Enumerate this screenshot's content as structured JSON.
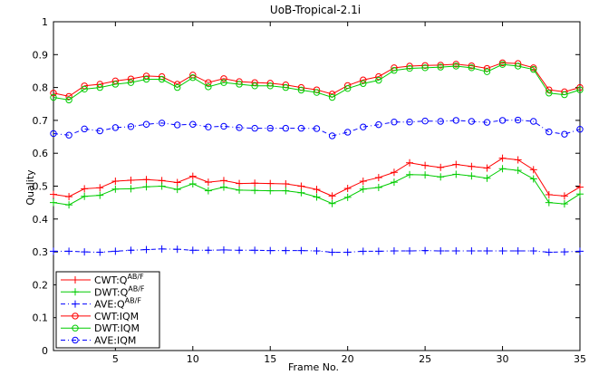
{
  "chart_data": {
    "type": "line",
    "title": "UoB-Tropical-2.1i",
    "xlabel": "Frame No.",
    "ylabel": "Quality",
    "xlim": [
      1,
      35
    ],
    "ylim": [
      0,
      1
    ],
    "xticks": [
      "5",
      "10",
      "15",
      "20",
      "25",
      "30",
      "35"
    ],
    "xtick_values": [
      5,
      10,
      15,
      20,
      25,
      30,
      35
    ],
    "yticks": [
      "0",
      "0.1",
      "0.2",
      "0.3",
      "0.4",
      "0.5",
      "0.6",
      "0.7",
      "0.8",
      "0.9",
      "1"
    ],
    "ytick_values": [
      0,
      0.1,
      0.2,
      0.3,
      0.4,
      0.5,
      0.6,
      0.7,
      0.8,
      0.9,
      1
    ],
    "grid": false,
    "legend_position": "bottom-left",
    "x": [
      1,
      2,
      3,
      4,
      5,
      6,
      7,
      8,
      9,
      10,
      11,
      12,
      13,
      14,
      15,
      16,
      17,
      18,
      19,
      20,
      21,
      22,
      23,
      24,
      25,
      26,
      27,
      28,
      29,
      30,
      31,
      32,
      33,
      34,
      35
    ],
    "series": [
      {
        "name": "CWT:Q^{AB/F}",
        "legend": {
          "base": "CWT:Q",
          "sup": "AB/F"
        },
        "color": "#ff0000",
        "dash": "solid",
        "marker": "plus",
        "values": [
          0.475,
          0.468,
          0.492,
          0.495,
          0.515,
          0.518,
          0.52,
          0.517,
          0.511,
          0.53,
          0.512,
          0.517,
          0.508,
          0.509,
          0.508,
          0.507,
          0.5,
          0.49,
          0.47,
          0.493,
          0.515,
          0.526,
          0.542,
          0.571,
          0.563,
          0.557,
          0.566,
          0.56,
          0.555,
          0.585,
          0.58,
          0.55,
          0.474,
          0.47,
          0.497
        ]
      },
      {
        "name": "DWT:Q^{AB/F}",
        "legend": {
          "base": "DWT:Q",
          "sup": "AB/F"
        },
        "color": "#00cc00",
        "dash": "solid",
        "marker": "plus",
        "values": [
          0.45,
          0.443,
          0.469,
          0.472,
          0.491,
          0.492,
          0.498,
          0.5,
          0.49,
          0.507,
          0.486,
          0.497,
          0.488,
          0.487,
          0.486,
          0.486,
          0.48,
          0.467,
          0.447,
          0.466,
          0.491,
          0.496,
          0.512,
          0.535,
          0.534,
          0.528,
          0.536,
          0.531,
          0.524,
          0.553,
          0.548,
          0.522,
          0.45,
          0.446,
          0.476
        ]
      },
      {
        "name": "AVE:Q^{AB/F}",
        "legend": {
          "base": "AVE:Q",
          "sup": "AB/F"
        },
        "color": "#0000ff",
        "dash": "dashdot",
        "marker": "plus",
        "values": [
          0.302,
          0.302,
          0.3,
          0.299,
          0.302,
          0.305,
          0.307,
          0.309,
          0.308,
          0.305,
          0.305,
          0.306,
          0.305,
          0.305,
          0.304,
          0.304,
          0.304,
          0.303,
          0.299,
          0.299,
          0.302,
          0.302,
          0.303,
          0.303,
          0.304,
          0.303,
          0.303,
          0.303,
          0.303,
          0.303,
          0.303,
          0.303,
          0.299,
          0.3,
          0.302
        ]
      },
      {
        "name": "CWT:IQM",
        "legend": {
          "base": "CWT:IQM",
          "sup": ""
        },
        "color": "#ff0000",
        "dash": "solid",
        "marker": "circle",
        "values": [
          0.783,
          0.773,
          0.805,
          0.81,
          0.82,
          0.826,
          0.835,
          0.833,
          0.81,
          0.838,
          0.815,
          0.827,
          0.818,
          0.815,
          0.813,
          0.808,
          0.8,
          0.793,
          0.78,
          0.806,
          0.823,
          0.833,
          0.86,
          0.865,
          0.867,
          0.868,
          0.871,
          0.866,
          0.858,
          0.875,
          0.873,
          0.86,
          0.793,
          0.787,
          0.8
        ]
      },
      {
        "name": "DWT:IQM",
        "legend": {
          "base": "DWT:IQM",
          "sup": ""
        },
        "color": "#00cc00",
        "dash": "solid",
        "marker": "circle",
        "values": [
          0.77,
          0.762,
          0.795,
          0.8,
          0.81,
          0.815,
          0.825,
          0.825,
          0.8,
          0.83,
          0.802,
          0.815,
          0.81,
          0.805,
          0.805,
          0.8,
          0.792,
          0.785,
          0.77,
          0.797,
          0.812,
          0.822,
          0.852,
          0.858,
          0.86,
          0.862,
          0.865,
          0.86,
          0.848,
          0.87,
          0.865,
          0.855,
          0.783,
          0.778,
          0.793
        ]
      },
      {
        "name": "AVE:IQM",
        "legend": {
          "base": "AVE:IQM",
          "sup": ""
        },
        "color": "#0000ff",
        "dash": "dashdot",
        "marker": "circle",
        "values": [
          0.66,
          0.655,
          0.674,
          0.668,
          0.678,
          0.681,
          0.688,
          0.692,
          0.686,
          0.688,
          0.68,
          0.682,
          0.678,
          0.676,
          0.676,
          0.676,
          0.676,
          0.675,
          0.653,
          0.664,
          0.68,
          0.687,
          0.695,
          0.695,
          0.698,
          0.697,
          0.7,
          0.697,
          0.694,
          0.7,
          0.701,
          0.697,
          0.665,
          0.658,
          0.673
        ]
      }
    ]
  }
}
